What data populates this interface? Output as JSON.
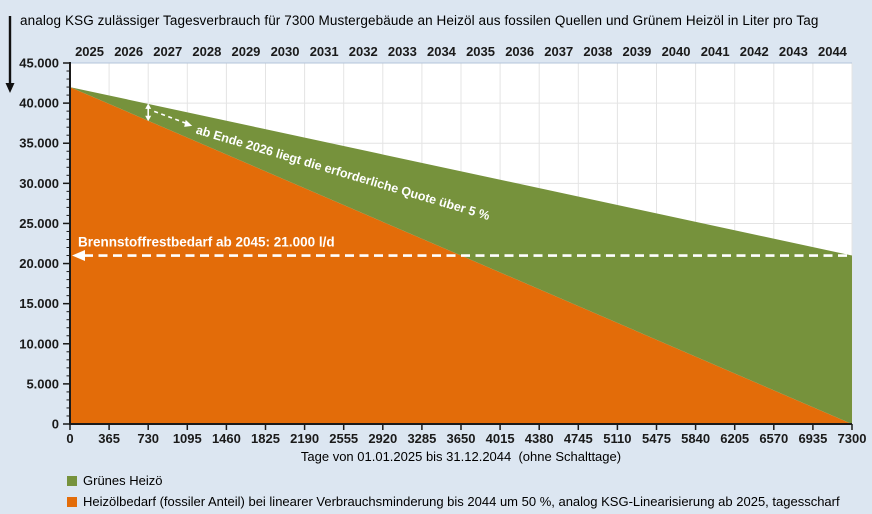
{
  "title": "analog KSG zulässiger Tagesverbrauch für 7300 Mustergebäude an Heizöl aus fossilen Quellen und Grünem Heizöl in Liter pro Tag",
  "colors": {
    "background": "#DCE6F1",
    "plot_background": "#FFFFFF",
    "green": "#76923C",
    "orange": "#E36C09",
    "gridline": "#E4E4E4",
    "plot_top_border": "#B3C4DA",
    "axis": "#1A1A1A",
    "annotation_text": "#FFFFFF"
  },
  "chart_data": {
    "type": "area",
    "stacked": true,
    "title": "analog KSG zulässiger Tagesverbrauch für 7300 Mustergebäude an Heizöl aus fossilen Quellen und Grünem Heizöl in Liter pro Tag",
    "xlabel": "Tage von 01.01.2025 bis 31.12.2044  (ohne Schalttage)",
    "ylabel": "",
    "xlim": [
      0,
      7300
    ],
    "ylim": [
      0,
      45000
    ],
    "grid": true,
    "legend_position": "bottom-left",
    "x": [
      0,
      7300
    ],
    "series": [
      {
        "name": "Heizölbedarf (fossiler Anteil) bei linearer Verbrauchsminderung bis 2044 um 50 %, analog KSG-Linearisierung ab 2025, tagesscharf",
        "color": "#E36C09",
        "values": [
          42000,
          0
        ]
      },
      {
        "name": "Grünes Heizö",
        "color": "#76923C",
        "values": [
          0,
          21000
        ]
      }
    ],
    "total_top_edge": [
      42000,
      21000
    ],
    "x_ticks": [
      0,
      365,
      730,
      1095,
      1460,
      1825,
      2190,
      2555,
      2920,
      3285,
      3650,
      4015,
      4380,
      4745,
      5110,
      5475,
      5840,
      6205,
      6570,
      6935,
      7300
    ],
    "x_tick_labels": [
      "0",
      "365",
      "730",
      "1095",
      "1460",
      "1825",
      "2190",
      "2555",
      "2920",
      "3285",
      "3650",
      "4015",
      "4380",
      "4745",
      "5110",
      "5475",
      "5840",
      "6205",
      "6570",
      "6935",
      "7300"
    ],
    "y_ticks": [
      0,
      5000,
      10000,
      15000,
      20000,
      25000,
      30000,
      35000,
      40000,
      45000
    ],
    "y_tick_labels": [
      "0",
      "5.000",
      "10.000",
      "15.000",
      "20.000",
      "25.000",
      "30.000",
      "35.000",
      "40.000",
      "45.000"
    ],
    "y_minor_tick_step": 1000,
    "top_axis_years": [
      "2025",
      "2026",
      "2027",
      "2028",
      "2029",
      "2030",
      "2031",
      "2032",
      "2033",
      "2034",
      "2035",
      "2036",
      "2037",
      "2038",
      "2039",
      "2040",
      "2041",
      "2042",
      "2043",
      "2044"
    ]
  },
  "annotations": {
    "restbedarf": {
      "text": "Brennstoffrestbedarf ab 2045: 21.000 l/d",
      "y_value": 21000
    },
    "quote": {
      "text": "ab Ende 2026 liegt die erforderliche Quote über 5 %",
      "marker_day": 730
    }
  },
  "legend": {
    "items": [
      {
        "label": "Grünes Heizö",
        "color": "#76923C"
      },
      {
        "label": "Heizölbedarf (fossiler Anteil) bei linearer Verbrauchsminderung bis 2044 um 50 %, analog KSG-Linearisierung ab 2025, tagesscharf",
        "color": "#E36C09"
      }
    ]
  }
}
